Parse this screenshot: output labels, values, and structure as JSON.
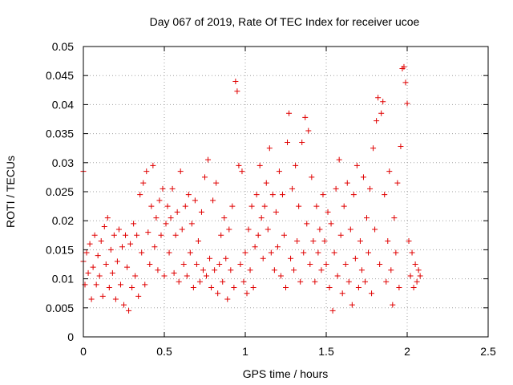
{
  "chart_data": {
    "type": "scatter",
    "title": "Day 067 of 2019, Rate Of TEC Index for receiver ucoe",
    "xlabel": "GPS time / hours",
    "ylabel": "ROTI / TECUs",
    "xlim": [
      0,
      2.5
    ],
    "ylim": [
      0,
      0.05
    ],
    "xticks": [
      0,
      0.5,
      1,
      1.5,
      2,
      2.5
    ],
    "xtick_labels": [
      "0",
      "0.5",
      "1",
      "1.5",
      "2",
      "2.5"
    ],
    "yticks": [
      0,
      0.005,
      0.01,
      0.015,
      0.02,
      0.025,
      0.03,
      0.035,
      0.04,
      0.045,
      0.05
    ],
    "ytick_labels": [
      "0",
      "0.005",
      "0.01",
      "0.015",
      "0.02",
      "0.025",
      "0.03",
      "0.035",
      "0.04",
      "0.045",
      "0.05"
    ],
    "grid": true,
    "marker": "+",
    "color": "#e00000",
    "series": [
      {
        "name": "ROTI",
        "points": [
          [
            0.0,
            0.0285
          ],
          [
            0.0,
            0.013
          ],
          [
            0.01,
            0.009
          ],
          [
            0.02,
            0.0145
          ],
          [
            0.03,
            0.011
          ],
          [
            0.04,
            0.016
          ],
          [
            0.05,
            0.0065
          ],
          [
            0.06,
            0.012
          ],
          [
            0.07,
            0.0175
          ],
          [
            0.08,
            0.009
          ],
          [
            0.09,
            0.014
          ],
          [
            0.1,
            0.0105
          ],
          [
            0.11,
            0.0165
          ],
          [
            0.12,
            0.007
          ],
          [
            0.13,
            0.019
          ],
          [
            0.14,
            0.0125
          ],
          [
            0.15,
            0.0205
          ],
          [
            0.16,
            0.0085
          ],
          [
            0.17,
            0.015
          ],
          [
            0.18,
            0.011
          ],
          [
            0.19,
            0.0175
          ],
          [
            0.2,
            0.0065
          ],
          [
            0.21,
            0.013
          ],
          [
            0.22,
            0.0185
          ],
          [
            0.23,
            0.009
          ],
          [
            0.24,
            0.0155
          ],
          [
            0.25,
            0.0055
          ],
          [
            0.26,
            0.0175
          ],
          [
            0.27,
            0.012
          ],
          [
            0.28,
            0.0045
          ],
          [
            0.29,
            0.016
          ],
          [
            0.3,
            0.0085
          ],
          [
            0.31,
            0.0195
          ],
          [
            0.32,
            0.0105
          ],
          [
            0.33,
            0.0175
          ],
          [
            0.34,
            0.007
          ],
          [
            0.35,
            0.0245
          ],
          [
            0.36,
            0.0145
          ],
          [
            0.37,
            0.0265
          ],
          [
            0.38,
            0.009
          ],
          [
            0.39,
            0.0285
          ],
          [
            0.4,
            0.018
          ],
          [
            0.41,
            0.0125
          ],
          [
            0.42,
            0.0225
          ],
          [
            0.43,
            0.0295
          ],
          [
            0.44,
            0.0155
          ],
          [
            0.45,
            0.0205
          ],
          [
            0.46,
            0.0115
          ],
          [
            0.47,
            0.0235
          ],
          [
            0.48,
            0.0175
          ],
          [
            0.49,
            0.0255
          ],
          [
            0.5,
            0.0105
          ],
          [
            0.51,
            0.0195
          ],
          [
            0.52,
            0.0225
          ],
          [
            0.53,
            0.0145
          ],
          [
            0.54,
            0.0205
          ],
          [
            0.55,
            0.0255
          ],
          [
            0.56,
            0.011
          ],
          [
            0.57,
            0.0175
          ],
          [
            0.58,
            0.0215
          ],
          [
            0.59,
            0.0095
          ],
          [
            0.6,
            0.0285
          ],
          [
            0.61,
            0.0185
          ],
          [
            0.62,
            0.0125
          ],
          [
            0.63,
            0.0225
          ],
          [
            0.64,
            0.0105
          ],
          [
            0.65,
            0.0245
          ],
          [
            0.66,
            0.0145
          ],
          [
            0.67,
            0.0195
          ],
          [
            0.68,
            0.0085
          ],
          [
            0.69,
            0.0235
          ],
          [
            0.7,
            0.0125
          ],
          [
            0.71,
            0.0165
          ],
          [
            0.72,
            0.0095
          ],
          [
            0.73,
            0.0215
          ],
          [
            0.74,
            0.0115
          ],
          [
            0.75,
            0.0275
          ],
          [
            0.76,
            0.0105
          ],
          [
            0.77,
            0.0305
          ],
          [
            0.78,
            0.0135
          ],
          [
            0.79,
            0.0085
          ],
          [
            0.8,
            0.0235
          ],
          [
            0.81,
            0.0115
          ],
          [
            0.82,
            0.0265
          ],
          [
            0.83,
            0.0075
          ],
          [
            0.84,
            0.0125
          ],
          [
            0.85,
            0.0175
          ],
          [
            0.86,
            0.0095
          ],
          [
            0.87,
            0.0205
          ],
          [
            0.88,
            0.0135
          ],
          [
            0.89,
            0.0065
          ],
          [
            0.9,
            0.0185
          ],
          [
            0.91,
            0.0115
          ],
          [
            0.92,
            0.0225
          ],
          [
            0.93,
            0.0085
          ],
          [
            0.94,
            0.044
          ],
          [
            0.95,
            0.0423
          ],
          [
            0.96,
            0.0295
          ],
          [
            0.97,
            0.0125
          ],
          [
            0.98,
            0.0285
          ],
          [
            0.99,
            0.0095
          ],
          [
            1.0,
            0.0145
          ],
          [
            1.01,
            0.0075
          ],
          [
            1.02,
            0.0185
          ],
          [
            1.03,
            0.0115
          ],
          [
            1.04,
            0.0225
          ],
          [
            1.05,
            0.0085
          ],
          [
            1.06,
            0.0155
          ],
          [
            1.07,
            0.0245
          ],
          [
            1.08,
            0.0175
          ],
          [
            1.09,
            0.0295
          ],
          [
            1.1,
            0.0205
          ],
          [
            1.11,
            0.0135
          ],
          [
            1.12,
            0.0225
          ],
          [
            1.13,
            0.0265
          ],
          [
            1.14,
            0.0185
          ],
          [
            1.15,
            0.0325
          ],
          [
            1.16,
            0.0145
          ],
          [
            1.17,
            0.0245
          ],
          [
            1.18,
            0.0115
          ],
          [
            1.19,
            0.0215
          ],
          [
            1.2,
            0.0155
          ],
          [
            1.21,
            0.0285
          ],
          [
            1.22,
            0.0105
          ],
          [
            1.23,
            0.0245
          ],
          [
            1.24,
            0.0175
          ],
          [
            1.25,
            0.0085
          ],
          [
            1.26,
            0.0335
          ],
          [
            1.27,
            0.0385
          ],
          [
            1.28,
            0.0135
          ],
          [
            1.29,
            0.0255
          ],
          [
            1.3,
            0.0115
          ],
          [
            1.31,
            0.0295
          ],
          [
            1.32,
            0.0165
          ],
          [
            1.33,
            0.0225
          ],
          [
            1.34,
            0.0095
          ],
          [
            1.35,
            0.0335
          ],
          [
            1.36,
            0.0145
          ],
          [
            1.37,
            0.0378
          ],
          [
            1.38,
            0.0195
          ],
          [
            1.39,
            0.0355
          ],
          [
            1.4,
            0.0125
          ],
          [
            1.41,
            0.0275
          ],
          [
            1.42,
            0.0165
          ],
          [
            1.43,
            0.0095
          ],
          [
            1.44,
            0.0225
          ],
          [
            1.45,
            0.0145
          ],
          [
            1.46,
            0.0185
          ],
          [
            1.47,
            0.0115
          ],
          [
            1.48,
            0.0245
          ],
          [
            1.49,
            0.0165
          ],
          [
            1.5,
            0.0125
          ],
          [
            1.51,
            0.0215
          ],
          [
            1.52,
            0.0085
          ],
          [
            1.53,
            0.0195
          ],
          [
            1.54,
            0.0045
          ],
          [
            1.55,
            0.0145
          ],
          [
            1.56,
            0.0255
          ],
          [
            1.57,
            0.0105
          ],
          [
            1.58,
            0.0305
          ],
          [
            1.59,
            0.0175
          ],
          [
            1.6,
            0.0075
          ],
          [
            1.61,
            0.0225
          ],
          [
            1.62,
            0.0125
          ],
          [
            1.63,
            0.0265
          ],
          [
            1.64,
            0.0095
          ],
          [
            1.65,
            0.0185
          ],
          [
            1.66,
            0.0055
          ],
          [
            1.67,
            0.0245
          ],
          [
            1.68,
            0.0135
          ],
          [
            1.69,
            0.0295
          ],
          [
            1.7,
            0.0085
          ],
          [
            1.71,
            0.0165
          ],
          [
            1.72,
            0.0115
          ],
          [
            1.73,
            0.0275
          ],
          [
            1.74,
            0.0095
          ],
          [
            1.75,
            0.0205
          ],
          [
            1.76,
            0.0145
          ],
          [
            1.77,
            0.0255
          ],
          [
            1.78,
            0.0075
          ],
          [
            1.79,
            0.0325
          ],
          [
            1.8,
            0.0185
          ],
          [
            1.81,
            0.0372
          ],
          [
            1.82,
            0.0412
          ],
          [
            1.83,
            0.0125
          ],
          [
            1.84,
            0.0385
          ],
          [
            1.85,
            0.0405
          ],
          [
            1.86,
            0.0245
          ],
          [
            1.87,
            0.0095
          ],
          [
            1.88,
            0.0165
          ],
          [
            1.89,
            0.0285
          ],
          [
            1.9,
            0.0115
          ],
          [
            1.91,
            0.0055
          ],
          [
            1.92,
            0.0205
          ],
          [
            1.93,
            0.0145
          ],
          [
            1.94,
            0.0265
          ],
          [
            1.95,
            0.0085
          ],
          [
            1.96,
            0.0328
          ],
          [
            1.97,
            0.0462
          ],
          [
            1.98,
            0.0465
          ],
          [
            1.99,
            0.0438
          ],
          [
            2.0,
            0.0402
          ],
          [
            2.01,
            0.0165
          ],
          [
            2.02,
            0.0105
          ],
          [
            2.03,
            0.0145
          ],
          [
            2.04,
            0.0085
          ],
          [
            2.05,
            0.0125
          ],
          [
            2.06,
            0.0095
          ],
          [
            2.07,
            0.0115
          ],
          [
            2.08,
            0.0105
          ]
        ]
      }
    ]
  }
}
